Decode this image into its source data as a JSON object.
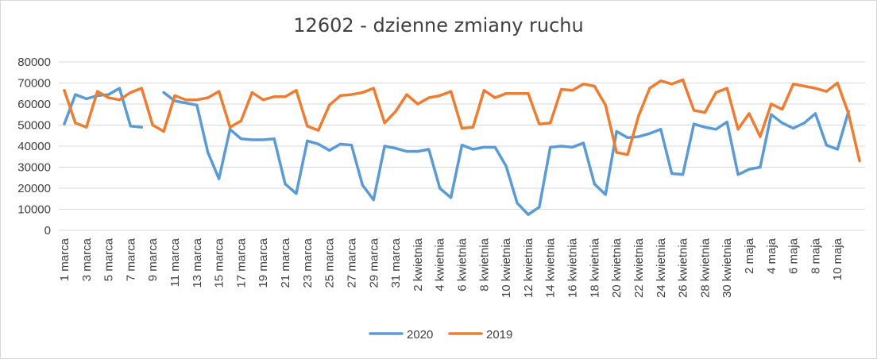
{
  "chart_data": {
    "type": "line",
    "title": "12602 - dzienne zmiany ruchu",
    "xlabel": "",
    "ylabel": "",
    "ylim": [
      0,
      80000
    ],
    "yticks": [
      0,
      10000,
      20000,
      30000,
      40000,
      50000,
      60000,
      70000,
      80000
    ],
    "grid": true,
    "legend_position": "bottom",
    "categories": [
      "1 marca",
      "2 marca",
      "3 marca",
      "4 marca",
      "5 marca",
      "6 marca",
      "7 marca",
      "8 marca",
      "9 marca",
      "10 marca",
      "11 marca",
      "12 marca",
      "13 marca",
      "14 marca",
      "15 marca",
      "16 marca",
      "17 marca",
      "18 marca",
      "19 marca",
      "20 marca",
      "21 marca",
      "22 marca",
      "23 marca",
      "24 marca",
      "25 marca",
      "26 marca",
      "27 marca",
      "28 marca",
      "29 marca",
      "30 marca",
      "31 marca",
      "1 kwietnia",
      "2 kwietnia",
      "3 kwietnia",
      "4 kwietnia",
      "5 kwietnia",
      "6 kwietnia",
      "7 kwietnia",
      "8 kwietnia",
      "9 kwietnia",
      "10 kwietnia",
      "11 kwietnia",
      "12 kwietnia",
      "13 kwietnia",
      "14 kwietnia",
      "15 kwietnia",
      "16 kwietnia",
      "17 kwietnia",
      "18 kwietnia",
      "19 kwietnia",
      "20 kwietnia",
      "21 kwietnia",
      "22 kwietnia",
      "23 kwietnia",
      "24 kwietnia",
      "25 kwietnia",
      "26 kwietnia",
      "27 kwietnia",
      "28 kwietnia",
      "29 kwietnia",
      "30 kwietnia",
      "1 maja",
      "2 maja",
      "3 maja",
      "4 maja",
      "5 maja",
      "6 maja",
      "7 maja",
      "8 maja",
      "9 maja",
      "10 maja",
      "11 maja",
      "12 maja"
    ],
    "tick_labels": [
      "1 marca",
      "3 marca",
      "5 marca",
      "7 marca",
      "9 marca",
      "11 marca",
      "13 marca",
      "15 marca",
      "17 marca",
      "19 marca",
      "21 marca",
      "23 marca",
      "25 marca",
      "27 marca",
      "29 marca",
      "31 marca",
      "2 kwietnia",
      "4 kwietnia",
      "6 kwietnia",
      "8 kwietnia",
      "10 kwietnia",
      "12 kwietnia",
      "14 kwietnia",
      "16 kwietnia",
      "18 kwietnia",
      "20 kwietnia",
      "22 kwietnia",
      "24 kwietnia",
      "26 kwietnia",
      "28 kwietnia",
      "30 kwietnia",
      "2 maja",
      "4 maja",
      "6 maja",
      "8 maja",
      "10 maja"
    ],
    "series": [
      {
        "name": "2020",
        "color": "#5b9bd5",
        "values": [
          50500,
          64500,
          62500,
          64000,
          64500,
          67500,
          49500,
          49000,
          null,
          65500,
          61500,
          60500,
          59500,
          37000,
          24500,
          48000,
          43500,
          43000,
          43000,
          43500,
          22000,
          17500,
          42500,
          41000,
          38000,
          41000,
          40500,
          21500,
          14500,
          40000,
          39000,
          37500,
          37500,
          38500,
          20000,
          15500,
          40500,
          38500,
          39500,
          39500,
          30500,
          13000,
          7500,
          11000,
          39500,
          40000,
          39500,
          41500,
          22000,
          17000,
          47000,
          44000,
          44500,
          46000,
          48000,
          27000,
          26500,
          50500,
          49000,
          48000,
          51500,
          26500,
          29000,
          30000,
          55000,
          51000,
          48500,
          51000,
          55500,
          40500,
          38500,
          56500,
          null
        ]
      },
      {
        "name": "2019",
        "color": "#ed7d31",
        "values": [
          66500,
          51000,
          49000,
          66000,
          63000,
          62000,
          65500,
          67500,
          50000,
          47000,
          64000,
          62000,
          62000,
          63000,
          66000,
          49000,
          52000,
          65500,
          62000,
          63500,
          63500,
          66500,
          49500,
          47500,
          59500,
          64000,
          64500,
          65500,
          67500,
          51000,
          56500,
          64500,
          60000,
          63000,
          64000,
          66000,
          48500,
          49000,
          66500,
          63000,
          65000,
          65000,
          65000,
          50500,
          51000,
          67000,
          66500,
          69500,
          68500,
          59500,
          37000,
          36000,
          54500,
          67500,
          71000,
          69500,
          71500,
          57000,
          56000,
          65500,
          67500,
          48000,
          55500,
          44500,
          60000,
          57500,
          69500,
          68500,
          67500,
          66000,
          70000,
          55500,
          33000
        ]
      }
    ]
  }
}
